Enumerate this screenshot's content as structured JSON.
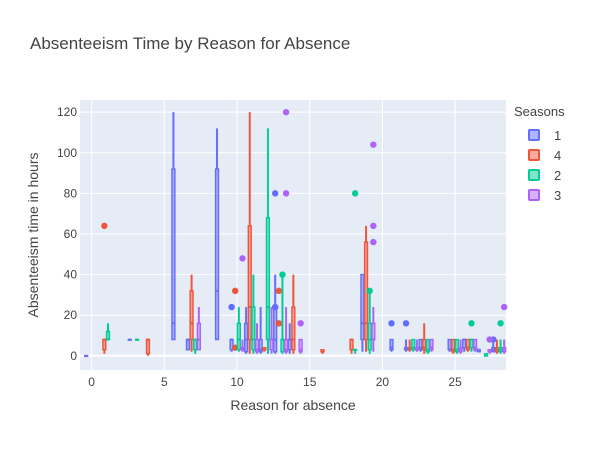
{
  "chart_data": {
    "type": "box",
    "title": "Absenteeism Time by Reason for Absence",
    "xlabel": "Reason for absence",
    "ylabel": "Absenteeism time in hours",
    "xlim": [
      -0.8,
      28.5
    ],
    "ylim": [
      -7,
      126
    ],
    "x_ticks": [
      0,
      5,
      10,
      15,
      20,
      25
    ],
    "y_ticks": [
      0,
      20,
      40,
      60,
      80,
      100,
      120
    ],
    "grid": true,
    "legend_title": "Seasons",
    "legend_position": "right",
    "series": [
      {
        "name": "1",
        "color": "#636efa",
        "boxes": [
          {
            "x": 0,
            "min": 0,
            "q1": 0,
            "median": 0,
            "q3": 0,
            "max": 0
          },
          {
            "x": 3,
            "min": 8,
            "q1": 8,
            "median": 8,
            "q3": 8,
            "max": 8
          },
          {
            "x": 6,
            "min": 8,
            "q1": 8,
            "median": 16,
            "q3": 92,
            "max": 120
          },
          {
            "x": 7,
            "min": 3,
            "q1": 3,
            "median": 8,
            "q3": 8,
            "max": 8
          },
          {
            "x": 9,
            "min": 8,
            "q1": 8,
            "median": 32,
            "q3": 92,
            "max": 112
          },
          {
            "x": 10,
            "min": 2,
            "q1": 3,
            "median": 8,
            "q3": 8,
            "max": 8
          },
          {
            "x": 11,
            "min": 1,
            "q1": 2,
            "median": 8,
            "q3": 16,
            "max": 24
          },
          {
            "x": 12,
            "min": 1,
            "q1": 2,
            "median": 3,
            "q3": 8,
            "max": 24
          },
          {
            "x": 13,
            "min": 1,
            "q1": 2,
            "median": 8,
            "q3": 24,
            "max": 40
          },
          {
            "x": 14,
            "min": 1,
            "q1": 3,
            "median": 8,
            "q3": 8,
            "max": 16
          },
          {
            "x": 19,
            "min": 2,
            "q1": 8,
            "median": 16,
            "q3": 40,
            "max": 40
          },
          {
            "x": 21,
            "min": 2,
            "q1": 3,
            "median": 4,
            "q3": 8,
            "max": 8
          },
          {
            "x": 22,
            "min": 2,
            "q1": 3,
            "median": 3,
            "q3": 4,
            "max": 8
          },
          {
            "x": 23,
            "min": 2,
            "q1": 3,
            "median": 4,
            "q3": 8,
            "max": 8
          },
          {
            "x": 25,
            "min": 2,
            "q1": 3,
            "median": 3,
            "q3": 8,
            "max": 8
          },
          {
            "x": 26,
            "min": 2,
            "q1": 4,
            "median": 8,
            "q3": 8,
            "max": 8
          },
          {
            "x": 27,
            "min": 2,
            "q1": 2,
            "median": 3,
            "q3": 3,
            "max": 3
          },
          {
            "x": 28,
            "min": 2,
            "q1": 2,
            "median": 3,
            "q3": 4,
            "max": 8
          }
        ],
        "outliers": [
          [
            13,
            80
          ],
          [
            13,
            24
          ],
          [
            21,
            16
          ],
          [
            22,
            16
          ],
          [
            28,
            8
          ],
          [
            10,
            24
          ]
        ]
      },
      {
        "name": "4",
        "color": "#ef553b",
        "boxes": [
          {
            "x": 1,
            "min": 1,
            "q1": 3,
            "median": 8,
            "q3": 8,
            "max": 8
          },
          {
            "x": 4,
            "min": 0,
            "q1": 1,
            "median": 8,
            "q3": 8,
            "max": 8
          },
          {
            "x": 7,
            "min": 2,
            "q1": 8,
            "median": 16,
            "q3": 32,
            "max": 40
          },
          {
            "x": 11,
            "min": 1,
            "q1": 8,
            "median": 24,
            "q3": 64,
            "max": 120
          },
          {
            "x": 12,
            "min": 2,
            "q1": 3,
            "median": 3,
            "q3": 4,
            "max": 4
          },
          {
            "x": 14,
            "min": 1,
            "q1": 3,
            "median": 8,
            "q3": 24,
            "max": 40
          },
          {
            "x": 16,
            "min": 1,
            "q1": 2,
            "median": 2,
            "q3": 3,
            "max": 3
          },
          {
            "x": 18,
            "min": 1,
            "q1": 3,
            "median": 8,
            "q3": 8,
            "max": 8
          },
          {
            "x": 19,
            "min": 2,
            "q1": 8,
            "median": 16,
            "q3": 56,
            "max": 64
          },
          {
            "x": 22,
            "min": 2,
            "q1": 3,
            "median": 3,
            "q3": 4,
            "max": 8
          },
          {
            "x": 23,
            "min": 1,
            "q1": 3,
            "median": 4,
            "q3": 8,
            "max": 16
          },
          {
            "x": 25,
            "min": 1,
            "q1": 2,
            "median": 3,
            "q3": 8,
            "max": 8
          },
          {
            "x": 26,
            "min": 2,
            "q1": 3,
            "median": 4,
            "q3": 8,
            "max": 8
          },
          {
            "x": 28,
            "min": 1,
            "q1": 2,
            "median": 3,
            "q3": 4,
            "max": 8
          }
        ],
        "outliers": [
          [
            1,
            64
          ],
          [
            10,
            32
          ],
          [
            10,
            4
          ],
          [
            13,
            32
          ],
          [
            13,
            16
          ]
        ]
      },
      {
        "name": "2",
        "color": "#00cc96",
        "boxes": [
          {
            "x": 1,
            "min": 8,
            "q1": 8,
            "median": 8,
            "q3": 12,
            "max": 16
          },
          {
            "x": 3,
            "min": 8,
            "q1": 8,
            "median": 8,
            "q3": 8,
            "max": 8
          },
          {
            "x": 7,
            "min": 1,
            "q1": 3,
            "median": 8,
            "q3": 8,
            "max": 8
          },
          {
            "x": 10,
            "min": 2,
            "q1": 3,
            "median": 8,
            "q3": 16,
            "max": 24
          },
          {
            "x": 11,
            "min": 1,
            "q1": 3,
            "median": 8,
            "q3": 24,
            "max": 40
          },
          {
            "x": 12,
            "min": 1,
            "q1": 8,
            "median": 24,
            "q3": 68,
            "max": 112
          },
          {
            "x": 13,
            "min": 1,
            "q1": 2,
            "median": 8,
            "q3": 8,
            "max": 40
          },
          {
            "x": 18,
            "min": 1,
            "q1": 3,
            "median": 3,
            "q3": 3,
            "max": 3
          },
          {
            "x": 19,
            "min": 1,
            "q1": 3,
            "median": 8,
            "q3": 16,
            "max": 32
          },
          {
            "x": 22,
            "min": 2,
            "q1": 3,
            "median": 4,
            "q3": 8,
            "max": 8
          },
          {
            "x": 23,
            "min": 1,
            "q1": 2,
            "median": 3,
            "q3": 8,
            "max": 8
          },
          {
            "x": 25,
            "min": 1,
            "q1": 2,
            "median": 3,
            "q3": 8,
            "max": 8
          },
          {
            "x": 26,
            "min": 2,
            "q1": 4,
            "median": 8,
            "q3": 8,
            "max": 8
          },
          {
            "x": 27,
            "min": 0,
            "q1": 0,
            "median": 0,
            "q3": 1,
            "max": 1
          },
          {
            "x": 28,
            "min": 1,
            "q1": 2,
            "median": 3,
            "q3": 4,
            "max": 8
          }
        ],
        "outliers": [
          [
            18,
            80
          ],
          [
            19,
            32
          ],
          [
            26,
            16
          ],
          [
            28,
            16
          ],
          [
            13,
            40
          ]
        ]
      },
      {
        "name": "3",
        "color": "#ab63fa",
        "boxes": [
          {
            "x": 7,
            "min": 3,
            "q1": 3,
            "median": 8,
            "q3": 16,
            "max": 24
          },
          {
            "x": 10,
            "min": 2,
            "q1": 3,
            "median": 3,
            "q3": 4,
            "max": 8
          },
          {
            "x": 11,
            "min": 1,
            "q1": 2,
            "median": 3,
            "q3": 8,
            "max": 16
          },
          {
            "x": 12,
            "min": 1,
            "q1": 3,
            "median": 8,
            "q3": 8,
            "max": 24
          },
          {
            "x": 13,
            "min": 1,
            "q1": 2,
            "median": 3,
            "q3": 8,
            "max": 24
          },
          {
            "x": 14,
            "min": 1,
            "q1": 2,
            "median": 3,
            "q3": 8,
            "max": 8
          },
          {
            "x": 19,
            "min": 2,
            "q1": 8,
            "median": 8,
            "q3": 16,
            "max": 24
          },
          {
            "x": 22,
            "min": 2,
            "q1": 3,
            "median": 3,
            "q3": 4,
            "max": 8
          },
          {
            "x": 23,
            "min": 2,
            "q1": 3,
            "median": 4,
            "q3": 8,
            "max": 8
          },
          {
            "x": 25,
            "min": 1,
            "q1": 2,
            "median": 3,
            "q3": 4,
            "max": 8
          },
          {
            "x": 26,
            "min": 2,
            "q1": 3,
            "median": 4,
            "q3": 8,
            "max": 8
          },
          {
            "x": 27,
            "min": 1,
            "q1": 2,
            "median": 2,
            "q3": 3,
            "max": 3
          },
          {
            "x": 28,
            "min": 1,
            "q1": 2,
            "median": 3,
            "q3": 4,
            "max": 8
          }
        ],
        "outliers": [
          [
            10,
            48
          ],
          [
            13,
            120
          ],
          [
            13,
            80
          ],
          [
            14,
            16
          ],
          [
            19,
            104
          ],
          [
            19,
            64
          ],
          [
            19,
            56
          ],
          [
            28,
            24
          ],
          [
            27,
            8
          ]
        ]
      }
    ]
  }
}
